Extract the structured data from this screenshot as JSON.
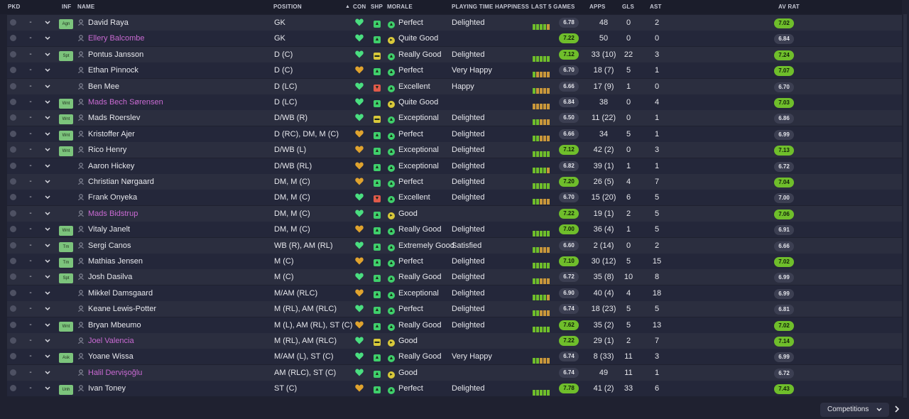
{
  "columns": {
    "pkd": "PKD",
    "inf": "INF",
    "name": "NAME",
    "position": "POSITION",
    "con": "CON",
    "shp": "SHP",
    "morale": "MORALE",
    "pth": "PLAYING TIME HAPPINESS",
    "last5": "LAST 5 GAMES",
    "apps": "APPS",
    "gls": "GLS",
    "ast": "AST",
    "avrat": "AV RAT"
  },
  "colors": {
    "perfect_morale": "#3fcf6b",
    "good_morale": "#d9c93a",
    "con_full": "#4ade80",
    "con_tired": "#e0a32e",
    "shp_good": "#3fcf6b",
    "shp_mid": "#d9c93a",
    "shp_low": "#e05a4a",
    "rating_green": "#6fbe2b",
    "loan_name": "#c96ad2"
  },
  "players": [
    {
      "inf": "Agn",
      "name": "David Raya",
      "loan": false,
      "position": "GK",
      "con": "full",
      "shp": "up",
      "morale": "Perfect",
      "pth": "Delighted",
      "bars": "ggggo",
      "rating": "6.78",
      "rating_hi": false,
      "apps": "48",
      "gls": "0",
      "ast": "2",
      "avrat": "7.02",
      "av_hi": true
    },
    {
      "inf": "",
      "name": "Ellery Balcombe",
      "loan": true,
      "position": "GK",
      "con": "full",
      "shp": "up",
      "morale": "Quite Good",
      "pth": "",
      "bars": "",
      "rating": "7.22",
      "rating_hi": true,
      "apps": "50",
      "gls": "0",
      "ast": "0",
      "avrat": "6.84",
      "av_hi": false
    },
    {
      "inf": "Spt",
      "name": "Pontus Jansson",
      "loan": false,
      "position": "D (C)",
      "con": "full",
      "shp": "mid",
      "morale": "Really Good",
      "pth": "Delighted",
      "bars": "ggggg",
      "rating": "7.12",
      "rating_hi": true,
      "apps": "33 (10)",
      "gls": "22",
      "ast": "3",
      "avrat": "7.24",
      "av_hi": true
    },
    {
      "inf": "",
      "name": "Ethan Pinnock",
      "loan": false,
      "position": "D (C)",
      "con": "tired",
      "shp": "up",
      "morale": "Perfect",
      "pth": "Very Happy",
      "bars": "goooo",
      "rating": "6.70",
      "rating_hi": false,
      "apps": "18 (7)",
      "gls": "5",
      "ast": "1",
      "avrat": "7.07",
      "av_hi": true
    },
    {
      "inf": "",
      "name": "Ben Mee",
      "loan": false,
      "position": "D (LC)",
      "con": "full",
      "shp": "low",
      "morale": "Excellent",
      "pth": "Happy",
      "bars": "goooo",
      "rating": "6.66",
      "rating_hi": false,
      "apps": "17 (9)",
      "gls": "1",
      "ast": "0",
      "avrat": "6.70",
      "av_hi": false
    },
    {
      "inf": "Wnt",
      "name": "Mads Bech Sørensen",
      "loan": true,
      "position": "D (LC)",
      "con": "full",
      "shp": "up",
      "morale": "Quite Good",
      "pth": "",
      "bars": "ooooo",
      "rating": "6.84",
      "rating_hi": false,
      "apps": "38",
      "gls": "0",
      "ast": "4",
      "avrat": "7.03",
      "av_hi": true
    },
    {
      "inf": "Wnt",
      "name": "Mads Roerslev",
      "loan": false,
      "position": "D/WB (R)",
      "con": "full",
      "shp": "mid",
      "morale": "Exceptional",
      "pth": "Delighted",
      "bars": "ggooo",
      "rating": "6.50",
      "rating_hi": false,
      "apps": "11 (22)",
      "gls": "0",
      "ast": "1",
      "avrat": "6.86",
      "av_hi": false
    },
    {
      "inf": "Wnt",
      "name": "Kristoffer Ajer",
      "loan": false,
      "position": "D (RC), DM, M (C)",
      "con": "tired",
      "shp": "up",
      "morale": "Perfect",
      "pth": "Delighted",
      "bars": "ggooo",
      "rating": "6.66",
      "rating_hi": false,
      "apps": "34",
      "gls": "5",
      "ast": "1",
      "avrat": "6.99",
      "av_hi": false
    },
    {
      "inf": "Wnt",
      "name": "Rico Henry",
      "loan": false,
      "position": "D/WB (L)",
      "con": "tired",
      "shp": "up",
      "morale": "Exceptional",
      "pth": "Delighted",
      "bars": "ggggg",
      "rating": "7.12",
      "rating_hi": true,
      "apps": "42 (2)",
      "gls": "0",
      "ast": "3",
      "avrat": "7.13",
      "av_hi": true
    },
    {
      "inf": "",
      "name": "Aaron Hickey",
      "loan": false,
      "position": "D/WB (RL)",
      "con": "tired",
      "shp": "up",
      "morale": "Exceptional",
      "pth": "Delighted",
      "bars": "ggggo",
      "rating": "6.82",
      "rating_hi": false,
      "apps": "39 (1)",
      "gls": "1",
      "ast": "1",
      "avrat": "6.72",
      "av_hi": false
    },
    {
      "inf": "",
      "name": "Christian Nørgaard",
      "loan": false,
      "position": "DM, M (C)",
      "con": "tired",
      "shp": "up",
      "morale": "Perfect",
      "pth": "Delighted",
      "bars": "ggggg",
      "rating": "7.20",
      "rating_hi": true,
      "apps": "26 (5)",
      "gls": "4",
      "ast": "7",
      "avrat": "7.04",
      "av_hi": true
    },
    {
      "inf": "",
      "name": "Frank Onyeka",
      "loan": false,
      "position": "DM, M (C)",
      "con": "full",
      "shp": "low",
      "morale": "Excellent",
      "pth": "Delighted",
      "bars": "ggooo",
      "rating": "6.70",
      "rating_hi": false,
      "apps": "15 (20)",
      "gls": "6",
      "ast": "5",
      "avrat": "7.00",
      "av_hi": false
    },
    {
      "inf": "",
      "name": "Mads Bidstrup",
      "loan": true,
      "position": "DM, M (C)",
      "con": "full",
      "shp": "up",
      "morale": "Good",
      "pth": "",
      "bars": "",
      "rating": "7.22",
      "rating_hi": true,
      "apps": "19 (1)",
      "gls": "2",
      "ast": "5",
      "avrat": "7.06",
      "av_hi": true
    },
    {
      "inf": "Wnt",
      "name": "Vitaly Janelt",
      "loan": false,
      "position": "DM, M (C)",
      "con": "tired",
      "shp": "up",
      "morale": "Really Good",
      "pth": "Delighted",
      "bars": "ggggg",
      "rating": "7.00",
      "rating_hi": true,
      "apps": "36 (4)",
      "gls": "1",
      "ast": "5",
      "avrat": "6.91",
      "av_hi": false
    },
    {
      "inf": "Tm",
      "name": "Sergi Canos",
      "loan": false,
      "position": "WB (R), AM (RL)",
      "con": "full",
      "shp": "up",
      "morale": "Extremely Good",
      "pth": "Satisfied",
      "bars": "ggooo",
      "rating": "6.60",
      "rating_hi": false,
      "apps": "2 (14)",
      "gls": "0",
      "ast": "2",
      "avrat": "6.66",
      "av_hi": false
    },
    {
      "inf": "Tm",
      "name": "Mathias Jensen",
      "loan": false,
      "position": "M (C)",
      "con": "tired",
      "shp": "up",
      "morale": "Perfect",
      "pth": "Delighted",
      "bars": "ggggg",
      "rating": "7.10",
      "rating_hi": true,
      "apps": "30 (12)",
      "gls": "5",
      "ast": "15",
      "avrat": "7.02",
      "av_hi": true
    },
    {
      "inf": "Spt",
      "name": "Josh Dasilva",
      "loan": false,
      "position": "M (C)",
      "con": "full",
      "shp": "up",
      "morale": "Really Good",
      "pth": "Delighted",
      "bars": "ggooo",
      "rating": "6.72",
      "rating_hi": false,
      "apps": "35 (8)",
      "gls": "10",
      "ast": "8",
      "avrat": "6.99",
      "av_hi": false
    },
    {
      "inf": "",
      "name": "Mikkel Damsgaard",
      "loan": false,
      "position": "M/AM (RLC)",
      "con": "tired",
      "shp": "up",
      "morale": "Exceptional",
      "pth": "Delighted",
      "bars": "ggggo",
      "rating": "6.90",
      "rating_hi": false,
      "apps": "40 (4)",
      "gls": "4",
      "ast": "18",
      "avrat": "6.99",
      "av_hi": false
    },
    {
      "inf": "",
      "name": "Keane Lewis-Potter",
      "loan": false,
      "position": "M (RL), AM (RLC)",
      "con": "full",
      "shp": "up",
      "morale": "Perfect",
      "pth": "Delighted",
      "bars": "ggooo",
      "rating": "6.74",
      "rating_hi": false,
      "apps": "18 (23)",
      "gls": "5",
      "ast": "5",
      "avrat": "6.81",
      "av_hi": false
    },
    {
      "inf": "Wnt",
      "name": "Bryan Mbeumo",
      "loan": false,
      "position": "M (L), AM (RL), ST (C)",
      "con": "tired",
      "shp": "up",
      "morale": "Really Good",
      "pth": "Delighted",
      "bars": "ggggg",
      "rating": "7.62",
      "rating_hi": true,
      "apps": "35 (2)",
      "gls": "5",
      "ast": "13",
      "avrat": "7.02",
      "av_hi": true
    },
    {
      "inf": "",
      "name": "Joel Valencia",
      "loan": true,
      "position": "M (RL), AM (RLC)",
      "con": "full",
      "shp": "mid",
      "morale": "Good",
      "pth": "",
      "bars": "",
      "rating": "7.22",
      "rating_hi": true,
      "apps": "29 (1)",
      "gls": "2",
      "ast": "7",
      "avrat": "7.14",
      "av_hi": true
    },
    {
      "inf": "Ask",
      "name": "Yoane Wissa",
      "loan": false,
      "position": "M/AM (L), ST (C)",
      "con": "full",
      "shp": "up",
      "morale": "Really Good",
      "pth": "Very Happy",
      "bars": "ggooo",
      "rating": "6.74",
      "rating_hi": false,
      "apps": "8 (33)",
      "gls": "11",
      "ast": "3",
      "avrat": "6.99",
      "av_hi": false
    },
    {
      "inf": "",
      "name": "Halil Dervişoğlu",
      "loan": true,
      "position": "AM (RLC), ST (C)",
      "con": "full",
      "shp": "up",
      "morale": "Good",
      "pth": "",
      "bars": "",
      "rating": "6.74",
      "rating_hi": false,
      "apps": "49",
      "gls": "11",
      "ast": "1",
      "avrat": "6.72",
      "av_hi": false
    },
    {
      "inf": "Unh",
      "name": "Ivan Toney",
      "loan": false,
      "position": "ST (C)",
      "con": "tired",
      "shp": "up",
      "morale": "Perfect",
      "pth": "Delighted",
      "bars": "ggggg",
      "rating": "7.78",
      "rating_hi": true,
      "apps": "41 (2)",
      "gls": "33",
      "ast": "6",
      "avrat": "7.43",
      "av_hi": true
    }
  ],
  "footer": {
    "competitions_label": "Competitions"
  }
}
